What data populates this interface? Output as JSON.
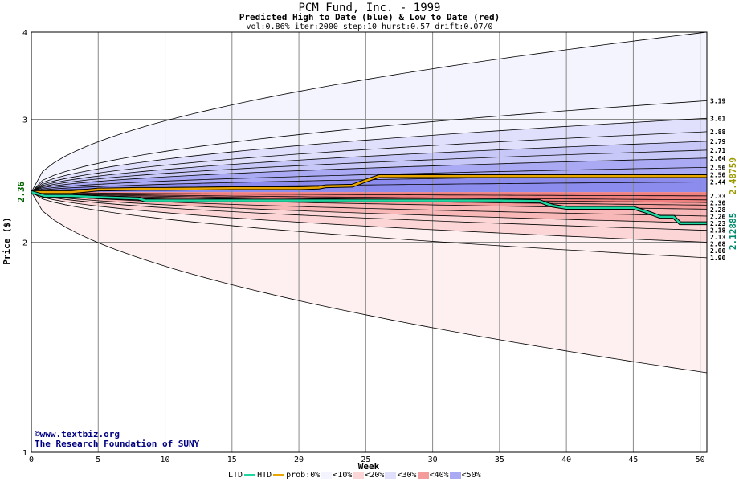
{
  "title": "PCM Fund, Inc. - 1999",
  "subtitle": "Predicted High to Date (blue) &  Low to Date (red)",
  "params": "vol:0.86% iter:2000 step:10 hurst:0.57 drift:0.07/0",
  "credit": {
    "line1": "©www.textbiz.org",
    "line2": "The Research Foundation of SUNY"
  },
  "legend": {
    "ltd": "LTD",
    "htd": "HTD",
    "prob": "prob:0%",
    "bands": [
      "<10%",
      "<20%",
      "<30%",
      "<40%",
      "<50%"
    ]
  },
  "colors": {
    "htd_line": "#e8a600",
    "ltd_line": "#1fd6a0",
    "blue_bands": [
      "#f4f4fe",
      "#e0e0fc",
      "#c8c8f8",
      "#aaaaf4",
      "#8c8cee"
    ],
    "red_bands": [
      "#fef0f0",
      "#fcd6d6",
      "#f8b8b8",
      "#f49c9c",
      "#f08080"
    ]
  },
  "chart_data": {
    "type": "area",
    "title": "PCM Fund, Inc. - 1999",
    "xlabel": "Week",
    "ylabel": "Price ($)",
    "xlim": [
      0,
      50.5
    ],
    "ylim": [
      1,
      4
    ],
    "yscale": "log",
    "xticks": [
      0,
      5,
      10,
      15,
      20,
      25,
      30,
      35,
      40,
      45,
      50
    ],
    "yticks": [
      1,
      2,
      3,
      4
    ],
    "start_price": 2.36,
    "start_label": "2.36",
    "htd_end_label": "2.48759",
    "ltd_end_label": "2.12885",
    "high_bands_end": [
      3.19,
      3.01,
      2.88,
      2.79,
      2.71,
      2.64,
      2.56,
      2.5,
      2.44
    ],
    "high_outer_end": 4.0,
    "low_bands_end": [
      2.33,
      2.3,
      2.28,
      2.26,
      2.23,
      2.18,
      2.13,
      2.08,
      2.0,
      1.9
    ],
    "low_outer_end": 1.3,
    "right_labels": [
      "3.19",
      "3.01",
      "2.88",
      "2.79",
      "2.71",
      "2.64",
      "2.56",
      "2.50",
      "2.44",
      "2.33",
      "2.30",
      "2.28",
      "2.26",
      "2.23",
      "2.18",
      "2.13",
      "2.08",
      "2.00",
      "1.90"
    ],
    "series": [
      {
        "name": "HTD",
        "x": [
          0,
          3,
          4,
          5,
          8,
          10,
          15,
          20,
          21.5,
          22,
          24,
          25,
          26,
          30,
          35,
          40,
          45,
          50.5
        ],
        "y": [
          2.36,
          2.36,
          2.37,
          2.38,
          2.385,
          2.385,
          2.39,
          2.39,
          2.395,
          2.405,
          2.41,
          2.45,
          2.48759,
          2.48759,
          2.48759,
          2.48759,
          2.48759,
          2.48759
        ]
      },
      {
        "name": "LTD",
        "x": [
          0,
          1,
          3,
          5,
          8,
          8.5,
          10,
          15,
          20,
          25,
          30,
          35,
          38,
          38.5,
          39,
          40,
          45,
          46,
          47,
          48,
          48.5,
          50.5
        ],
        "y": [
          2.36,
          2.33,
          2.33,
          2.32,
          2.31,
          2.295,
          2.295,
          2.295,
          2.295,
          2.295,
          2.295,
          2.295,
          2.29,
          2.27,
          2.255,
          2.24,
          2.24,
          2.21,
          2.175,
          2.175,
          2.12885,
          2.12885
        ]
      }
    ]
  }
}
